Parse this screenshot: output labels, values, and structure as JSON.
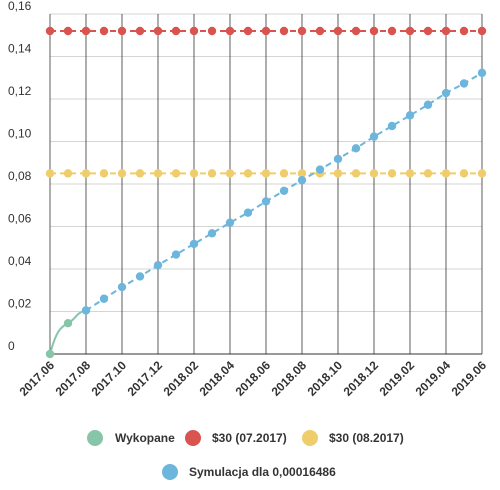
{
  "chart_data": {
    "type": "line",
    "title": "",
    "xlabel": "",
    "ylabel": "",
    "ylim": [
      0,
      0.16
    ],
    "yticks": [
      "0",
      "0,02",
      "0,04",
      "0,06",
      "0,08",
      "0,10",
      "0,12",
      "0,14",
      "0,16"
    ],
    "xticks": [
      "2017.06",
      "2017.08",
      "2017.10",
      "2017.12",
      "2018.02",
      "2018.04",
      "2018.06",
      "2018.08",
      "2018.10",
      "2018.12",
      "2019.02",
      "2019.04",
      "2019.06"
    ],
    "x_months": [
      "2017.06",
      "2017.07",
      "2017.08",
      "2017.09",
      "2017.10",
      "2017.11",
      "2017.12",
      "2018.01",
      "2018.02",
      "2018.03",
      "2018.04",
      "2018.05",
      "2018.06",
      "2018.07",
      "2018.08",
      "2018.09",
      "2018.10",
      "2018.11",
      "2018.12",
      "2019.01",
      "2019.02",
      "2019.03",
      "2019.04",
      "2019.05",
      "2019.06"
    ],
    "grid": true,
    "legend_position": "bottom",
    "series": [
      {
        "name": "Wykopane",
        "color": "#86c5a8",
        "line": "solid",
        "smooth": true,
        "x": [
          "2017.06",
          "2017.07",
          "2017.08"
        ],
        "values": [
          0,
          0.0145,
          0.0205
        ]
      },
      {
        "name": "$30 (07.2017)",
        "color": "#d9534f",
        "line": "dashed",
        "x": [
          "2017.06",
          "2017.07",
          "2017.08",
          "2017.09",
          "2017.10",
          "2017.11",
          "2017.12",
          "2018.01",
          "2018.02",
          "2018.03",
          "2018.04",
          "2018.05",
          "2018.06",
          "2018.07",
          "2018.08",
          "2018.09",
          "2018.10",
          "2018.11",
          "2018.12",
          "2019.01",
          "2019.02",
          "2019.03",
          "2019.04",
          "2019.05",
          "2019.06"
        ],
        "values": [
          0.152,
          0.152,
          0.152,
          0.152,
          0.152,
          0.152,
          0.152,
          0.152,
          0.152,
          0.152,
          0.152,
          0.152,
          0.152,
          0.152,
          0.152,
          0.152,
          0.152,
          0.152,
          0.152,
          0.152,
          0.152,
          0.152,
          0.152,
          0.152,
          0.152
        ]
      },
      {
        "name": "$30 (08.2017)",
        "color": "#f0cd6b",
        "line": "dashed",
        "x": [
          "2017.06",
          "2017.07",
          "2017.08",
          "2017.09",
          "2017.10",
          "2017.11",
          "2017.12",
          "2018.01",
          "2018.02",
          "2018.03",
          "2018.04",
          "2018.05",
          "2018.06",
          "2018.07",
          "2018.08",
          "2018.09",
          "2018.10",
          "2018.11",
          "2018.12",
          "2019.01",
          "2019.02",
          "2019.03",
          "2019.04",
          "2019.05",
          "2019.06"
        ],
        "values": [
          0.085,
          0.085,
          0.085,
          0.085,
          0.085,
          0.085,
          0.085,
          0.085,
          0.085,
          0.085,
          0.085,
          0.085,
          0.085,
          0.085,
          0.085,
          0.085,
          0.085,
          0.085,
          0.085,
          0.085,
          0.085,
          0.085,
          0.085,
          0.085,
          0.085
        ]
      },
      {
        "name": "Symulacja dla 0,00016486",
        "color": "#6cb6dd",
        "line": "dashed",
        "x": [
          "2017.08",
          "2017.09",
          "2017.10",
          "2017.11",
          "2017.12",
          "2018.01",
          "2018.02",
          "2018.03",
          "2018.04",
          "2018.05",
          "2018.06",
          "2018.07",
          "2018.08",
          "2018.09",
          "2018.10",
          "2018.11",
          "2018.12",
          "2019.01",
          "2019.02",
          "2019.03",
          "2019.04",
          "2019.05",
          "2019.06"
        ],
        "values": [
          0.0205,
          0.026,
          0.0315,
          0.0365,
          0.0418,
          0.0468,
          0.0518,
          0.0568,
          0.0618,
          0.0665,
          0.0718,
          0.0768,
          0.0818,
          0.0868,
          0.0918,
          0.0968,
          0.1023,
          0.1073,
          0.1123,
          0.1173,
          0.1228,
          0.1273,
          0.1323
        ]
      }
    ]
  }
}
